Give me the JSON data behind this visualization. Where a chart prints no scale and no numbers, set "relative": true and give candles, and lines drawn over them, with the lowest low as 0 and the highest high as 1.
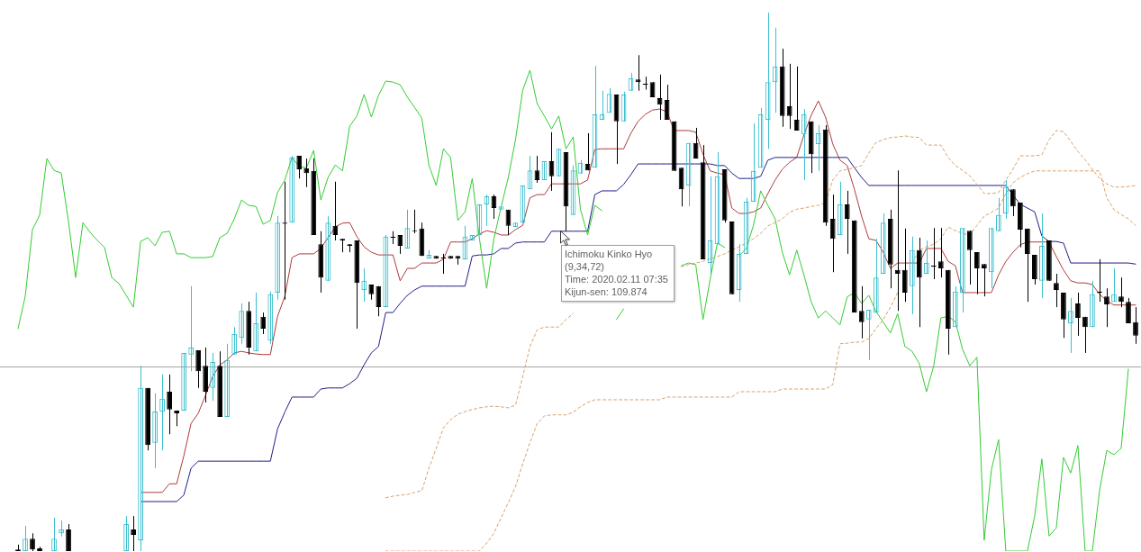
{
  "chart_data": {
    "type": "candlestick",
    "relative": true,
    "legend": false,
    "tick_labels": false,
    "marker": "none",
    "categories": [
      null,
      null,
      null,
      null,
      null,
      null,
      null,
      null,
      null,
      null,
      null,
      null,
      null,
      null,
      null,
      null,
      null,
      null,
      null,
      null,
      null,
      null,
      null,
      null,
      null,
      null,
      null,
      null,
      null,
      null,
      null,
      null,
      null,
      null,
      null,
      null,
      null,
      null,
      null,
      null,
      null,
      null,
      null,
      null,
      null,
      null,
      null,
      null,
      null,
      null,
      null,
      null,
      null,
      null,
      null,
      null,
      null,
      null,
      null,
      null,
      null,
      null,
      null,
      null,
      null,
      null,
      null,
      null,
      null,
      null,
      null,
      null,
      null,
      null,
      null,
      null,
      null,
      null,
      null,
      null,
      null,
      null,
      null,
      null,
      null,
      null,
      null,
      null,
      null,
      null,
      null,
      null,
      null,
      null,
      null,
      null,
      null,
      null,
      null,
      null,
      null,
      null,
      null,
      null,
      null,
      null,
      null,
      null,
      null,
      null,
      null,
      null,
      null,
      null,
      null,
      null,
      null,
      null,
      null,
      null,
      null,
      null,
      null,
      null,
      null,
      null,
      null,
      null,
      null,
      null,
      null,
      null,
      null,
      null,
      null,
      null,
      null,
      null,
      null,
      null,
      null,
      null,
      null,
      null,
      null,
      null,
      null,
      null,
      null,
      null,
      null,
      null,
      null,
      null,
      null,
      null
    ],
    "ohlc": [
      [
        0.003,
        0.012,
        0,
        0
      ],
      [
        0,
        0.047,
        0,
        0.023
      ],
      [
        0.023,
        0.033,
        0,
        0.003
      ],
      [
        0.005,
        0.008,
        0,
        0
      ],
      null,
      [
        0,
        0.062,
        0,
        0.023
      ],
      [
        0.033,
        0.057,
        0.027,
        0.04
      ],
      [
        0.04,
        0.05,
        0,
        0
      ],
      null,
      null,
      null,
      null,
      null,
      null,
      null,
      [
        0,
        0.065,
        0,
        0.05
      ],
      [
        0.04,
        0.065,
        0,
        0.03
      ],
      [
        0.02,
        0.344,
        0,
        0.303
      ],
      [
        0.303,
        0.303,
        0.187,
        0.197
      ],
      [
        0.201,
        0.293,
        0.154,
        0.259
      ],
      [
        0.259,
        0.328,
        0.187,
        0.283
      ],
      [
        0.296,
        0.328,
        0.217,
        0.263
      ],
      [
        0.261,
        0.261,
        0.232,
        0.256
      ],
      [
        0.261,
        0.368,
        0.261,
        0.368
      ],
      [
        0.365,
        0.492,
        0.334,
        0.378
      ],
      [
        0.373,
        0.373,
        0.303,
        0.334
      ],
      [
        0.344,
        0.378,
        0.276,
        0.296
      ],
      [
        0.303,
        0.368,
        0.279,
        0.351
      ],
      [
        0.344,
        0.371,
        0.249,
        0.249
      ],
      [
        0.249,
        0.385,
        0.249,
        0.355
      ],
      [
        0.365,
        0.416,
        0.365,
        0.403
      ],
      [
        0.396,
        0.46,
        0.385,
        0.446
      ],
      [
        0.446,
        0.463,
        0.365,
        0.378
      ],
      [
        0.371,
        0.48,
        0.371,
        0.423
      ],
      [
        0.435,
        0.443,
        0.403,
        0.413
      ],
      [
        0.391,
        0.482,
        0.385,
        0.477
      ],
      [
        0.48,
        0.622,
        0.467,
        0.61
      ],
      [
        0.61,
        0.686,
        0.467,
        0.608
      ],
      [
        0.61,
        0.734,
        0.61,
        0.731
      ],
      [
        0.734,
        0.734,
        0.692,
        0.709
      ],
      [
        0.711,
        0.729,
        0.676,
        0.702
      ],
      [
        0.706,
        0.729,
        0.587,
        0.587
      ],
      [
        0.57,
        0.594,
        0.48,
        0.508
      ],
      [
        0.502,
        0.622,
        0.502,
        0.61
      ],
      [
        0.604,
        0.686,
        0.577,
        0.587
      ],
      [
        0.58,
        0.58,
        0.555,
        0.577
      ],
      [
        0.57,
        0.57,
        0.555,
        0.567
      ],
      [
        0.577,
        0.577,
        0.413,
        0.498
      ],
      [
        0.485,
        0.525,
        0.463,
        0.502
      ],
      [
        0.495,
        0.495,
        0.467,
        0.477
      ],
      [
        0.492,
        0.492,
        0.436,
        0.453
      ],
      [
        0.453,
        0.587,
        0.453,
        0.584
      ],
      [
        0.584,
        0.594,
        0.57,
        0.582
      ],
      [
        0.587,
        0.587,
        0.552,
        0.567
      ],
      [
        0.562,
        0.634,
        0.562,
        0.6
      ],
      [
        0.594,
        0.634,
        0.59,
        0.594
      ],
      [
        0.599,
        0.61,
        0.548,
        0.548
      ],
      [
        0.543,
        0.559,
        0.543,
        0.55
      ],
      [
        0.548,
        0.548,
        0.543,
        0.543
      ],
      [
        0.545,
        0.552,
        0.515,
        0.543
      ],
      [
        0.548,
        0.548,
        0.543,
        0.543
      ],
      [
        0.548,
        0.548,
        0.532,
        0.543
      ],
      [
        0.542,
        0.604,
        0.542,
        0.584
      ],
      [
        0.577,
        0.587,
        0.577,
        0.587
      ],
      [
        0.587,
        0.644,
        0.587,
        0.644
      ],
      [
        0.644,
        0.662,
        0.604,
        0.659
      ],
      [
        0.659,
        0.662,
        0.617,
        0.637
      ],
      [
        0.634,
        0.64,
        0.634,
        0.64
      ],
      [
        0.634,
        0.634,
        0.587,
        0.604
      ],
      [
        0.602,
        0.61,
        0.602,
        0.61
      ],
      [
        0.61,
        0.679,
        0.61,
        0.679
      ],
      [
        0.672,
        0.734,
        0.672,
        0.707
      ],
      [
        0.707,
        0.734,
        0.684,
        0.689
      ],
      [
        0.689,
        0.724,
        0.689,
        0.724
      ],
      [
        0.724,
        0.778,
        0.669,
        0.696
      ],
      [
        0.696,
        0.747,
        0.696,
        0.747
      ],
      [
        0.741,
        0.741,
        0.594,
        0.64
      ],
      [
        0.624,
        0.716,
        0.624,
        0.707
      ],
      [
        0.701,
        0.726,
        0.701,
        0.721
      ],
      [
        0.719,
        0.776,
        0.707,
        0.707
      ],
      [
        0.712,
        0.901,
        0.712,
        0.811
      ],
      [
        0.801,
        0.855,
        0.801,
        0.811
      ],
      [
        0.814,
        0.86,
        0.814,
        0.849
      ],
      [
        0.848,
        0.848,
        0.719,
        0.798
      ],
      [
        0.798,
        0.853,
        0.798,
        0.848
      ],
      [
        0.855,
        0.888,
        0.855,
        0.878
      ],
      [
        0.876,
        0.921,
        0.855,
        0.871
      ],
      [
        0.868,
        0.881,
        0.857,
        0.866
      ],
      [
        0.871,
        0.871,
        0.843,
        0.843
      ],
      [
        0.841,
        0.885,
        0.801,
        0.829
      ],
      [
        0.838,
        0.866,
        0.801,
        0.801
      ],
      [
        0.798,
        0.798,
        0.706,
        0.706
      ],
      [
        0.712,
        0.712,
        0.64,
        0.672
      ],
      [
        0.679,
        0.758,
        0.64,
        0.758
      ],
      [
        0.758,
        0.786,
        0.729,
        0.729
      ],
      [
        0.722,
        0.754,
        0.542,
        0.542
      ],
      [
        0.535,
        0.696,
        0.515,
        0.577
      ],
      [
        0.57,
        0.741,
        0.57,
        0.696
      ],
      [
        0.709,
        0.709,
        0.61,
        0.614
      ],
      [
        0.612,
        0.612,
        0.477,
        0.477
      ],
      [
        0.485,
        0.57,
        0.463,
        0.552
      ],
      [
        0.552,
        0.656,
        0.552,
        0.649
      ],
      [
        0.649,
        0.794,
        0.649,
        0.706
      ],
      [
        0.712,
        0.823,
        0.712,
        0.811
      ],
      [
        0.801,
        1,
        0.747,
        0.871
      ],
      [
        0.871,
        0.972,
        0.814,
        0.9
      ],
      [
        0.9,
        0.933,
        0.788,
        0.808
      ],
      [
        0.826,
        0.905,
        0.784,
        0.808
      ],
      [
        0.801,
        0.9,
        0.781,
        0.781
      ],
      [
        0.774,
        0.821,
        0.689,
        0.811
      ],
      [
        0.798,
        0.798,
        0.702,
        0.737
      ],
      [
        0.756,
        0.791,
        0.706,
        0.776
      ],
      [
        0.783,
        0.791,
        0.604,
        0.61
      ],
      [
        0.617,
        0.662,
        0.518,
        0.58
      ],
      [
        0.587,
        0.686,
        0.587,
        0.644
      ],
      [
        0.644,
        0.669,
        0.552,
        0.617
      ],
      [
        0.614,
        0.614,
        0.443,
        0.443
      ],
      [
        0.446,
        0.492,
        0.395,
        0.425
      ],
      [
        0.43,
        0.448,
        0.355,
        0.448
      ],
      [
        0.443,
        0.58,
        0.443,
        0.508
      ],
      [
        0.515,
        0.627,
        0.515,
        0.61
      ],
      [
        0.617,
        0.634,
        0.488,
        0.532
      ],
      [
        0.522,
        0.707,
        0.446,
        0.515
      ],
      [
        0.522,
        0.599,
        0.463,
        0.48
      ],
      [
        0.492,
        0.584,
        0.44,
        0.559
      ],
      [
        0.559,
        0.582,
        0.416,
        0.508
      ],
      [
        0.515,
        0.577,
        0.515,
        0.535
      ],
      [
        0.53,
        0.6,
        0.505,
        0.528
      ],
      [
        0.538,
        0.6,
        0.508,
        0.525
      ],
      [
        0.522,
        0.522,
        0.365,
        0.413
      ],
      [
        0.416,
        0.492,
        0.416,
        0.482
      ],
      [
        0.48,
        0.6,
        0.443,
        0.6
      ],
      [
        0.595,
        0.595,
        0.495,
        0.559
      ],
      [
        0.555,
        0.555,
        0.477,
        0.525
      ],
      [
        0.533,
        0.533,
        0.473,
        0.525
      ],
      [
        0.518,
        0.6,
        0.488,
        0.6
      ],
      [
        0.594,
        0.656,
        0.594,
        0.624
      ],
      [
        0.627,
        0.689,
        0.617,
        0.676
      ],
      [
        0.672,
        0.672,
        0.622,
        0.64
      ],
      [
        0.647,
        0.647,
        0.564,
        0.597
      ],
      [
        0.599,
        0.599,
        0.463,
        0.552
      ],
      [
        0.55,
        0.55,
        0.495,
        0.505
      ],
      [
        0.502,
        0.627,
        0.47,
        0.567
      ],
      [
        0.577,
        0.577,
        0.502,
        0.502
      ],
      [
        0.498,
        0.515,
        0.453,
        0.485
      ],
      [
        0.48,
        0.48,
        0.396,
        0.43
      ],
      [
        0.423,
        0.47,
        0.368,
        0.446
      ],
      [
        0.46,
        0.48,
        0.4,
        0.433
      ],
      [
        0.435,
        0.435,
        0.368,
        0.416
      ],
      [
        0.416,
        0.502,
        0.416,
        0.477
      ],
      [
        0.482,
        0.542,
        0.463,
        0.48
      ],
      [
        0.473,
        0.488,
        0.416,
        0.458
      ],
      [
        0.463,
        0.525,
        0.463,
        0.477
      ],
      [
        0.473,
        0.508,
        0.453,
        0.463
      ],
      [
        0.463,
        0.47,
        0.423,
        0.423
      ],
      [
        0.425,
        0.453,
        0.385,
        0.4
      ]
    ],
    "colors": [
      "#000000",
      "#3cbfcf",
      "#000000",
      "#000000",
      null,
      "#3cbfcf",
      "#3cbfcf",
      "#000000",
      null,
      null,
      null,
      null,
      null,
      null,
      null,
      "#3cbfcf",
      "#000000",
      "#3cbfcf",
      "#000000",
      "#3cbfcf",
      "#3cbfcf",
      "#000000",
      "#000000",
      "#3cbfcf",
      "#3cbfcf",
      "#000000",
      "#000000",
      "#3cbfcf",
      "#000000",
      "#3cbfcf",
      "#3cbfcf",
      "#3cbfcf",
      "#000000",
      "#3cbfcf",
      "#000000",
      "#3cbfcf",
      "#3cbfcf",
      "#000000",
      "#3cbfcf",
      "#000000",
      "#000000",
      "#000000",
      "#000000",
      "#3cbfcf",
      "#000000",
      "#000000",
      "#000000",
      "#000000",
      "#3cbfcf",
      "#000000",
      "#000000",
      "#3cbfcf",
      "#000000",
      "#000000",
      "#3cbfcf",
      "#000000",
      "#000000",
      "#3cbfcf",
      "#000000",
      "#000000",
      "#000000",
      "#000000",
      "#3cbfcf",
      "#3cbfcf",
      "#3cbfcf",
      "#3cbfcf",
      "#000000",
      "#3cbfcf",
      "#000000",
      "#3cbfcf",
      "#3cbfcf",
      "#3cbfcf",
      "#000000",
      "#3cbfcf",
      "#000000",
      "#3cbfcf",
      "#000000",
      "#3cbfcf",
      "#3cbfcf",
      "#000000",
      "#3cbfcf",
      "#3cbfcf",
      "#3cbfcf",
      "#000000",
      "#3cbfcf",
      "#3cbfcf",
      "#000000",
      "#000000",
      "#000000",
      "#000000",
      "#000000",
      "#000000",
      "#000000",
      "#3cbfcf",
      "#000000",
      "#000000",
      "#3cbfcf",
      "#3cbfcf",
      "#000000",
      "#000000",
      "#3cbfcf",
      "#3cbfcf",
      "#3cbfcf",
      "#3cbfcf",
      "#3cbfcf",
      "#3cbfcf",
      "#000000",
      "#000000",
      "#000000",
      "#3cbfcf",
      "#000000",
      "#3cbfcf",
      "#000000",
      "#000000",
      "#3cbfcf",
      "#000000",
      "#000000",
      "#000000",
      "#3cbfcf",
      "#3cbfcf",
      "#3cbfcf",
      "#000000",
      "#000000",
      "#000000",
      "#3cbfcf",
      "#000000",
      "#3cbfcf",
      "#000000",
      "#000000",
      "#000000",
      "#3cbfcf",
      "#3cbfcf",
      "#000000",
      "#000000",
      "#000000",
      "#3cbfcf",
      "#3cbfcf",
      "#3cbfcf",
      "#000000",
      "#000000",
      "#000000",
      "#000000",
      "#3cbfcf",
      "#000000",
      "#000000",
      "#000000",
      "#3cbfcf",
      "#000000",
      "#000000",
      "#3cbfcf",
      "#000000",
      "#000000",
      "#3cbfcf",
      "#000000",
      "#000000",
      "#000000"
    ],
    "series": [
      {
        "type": "line",
        "color": "#d9a066",
        "line_style": "dashed",
        "values": [
          null,
          null,
          null,
          null,
          null,
          null,
          null,
          null,
          null,
          null,
          null,
          null,
          null,
          null,
          null,
          null,
          null,
          null,
          null,
          null,
          null,
          null,
          null,
          null,
          null,
          null,
          null,
          null,
          null,
          null,
          null,
          null,
          null,
          null,
          null,
          null,
          null,
          null,
          null,
          null,
          null,
          null,
          null,
          null,
          null,
          null,
          null,
          null,
          null,
          null,
          null,
          0.099,
          0.102,
          0.104,
          0.105,
          0.109,
          0.112,
          0.154,
          0.191,
          0.229,
          0.244,
          0.254,
          0.259,
          0.263,
          0.266,
          0.268,
          0.269,
          0.268,
          0.266,
          0.271,
          0.324,
          0.38,
          0.411,
          0.416,
          0.416,
          0.416,
          0.43,
          0.441,
          null,
          null,
          null,
          null,
          null,
          null,
          null,
          null,
          null,
          null,
          null,
          null,
          null,
          null,
          0.528,
          0.532,
          0.535,
          0.538,
          0.543,
          0.547,
          0.552,
          0.559,
          0.565,
          0.572,
          0.58,
          0.59,
          0.604,
          0.61,
          0.617,
          0.629,
          0.635,
          0.637,
          0.64,
          0.642,
          0.647,
          0.689,
          0.706,
          0.709,
          0.712,
          0.716,
          0.739,
          0.759,
          0.764,
          0.768,
          0.769,
          0.771,
          0.769,
          0.768,
          0.754,
          0.754,
          0.754,
          0.731,
          0.716,
          0.707,
          0.697,
          0.681,
          0.664,
          0.664,
          0.666,
          0.689,
          0.709,
          0.734,
          0.734,
          0.734,
          0.736,
          0.764,
          0.781,
          0.779,
          0.761,
          0.742,
          0.727,
          0.709,
          0.692,
          0.682,
          0.676,
          0.676,
          0.677,
          0.679
        ]
      },
      {
        "type": "line",
        "color": "#d9a066",
        "line_style": "dashed",
        "values": [
          null,
          null,
          null,
          null,
          null,
          null,
          null,
          null,
          null,
          null,
          null,
          null,
          null,
          null,
          null,
          null,
          null,
          null,
          null,
          null,
          null,
          null,
          null,
          null,
          null,
          null,
          null,
          null,
          null,
          null,
          null,
          null,
          null,
          null,
          null,
          null,
          null,
          null,
          null,
          null,
          null,
          null,
          null,
          null,
          null,
          null,
          null,
          null,
          null,
          null,
          null,
          0,
          0,
          0,
          0,
          0,
          0,
          0,
          0,
          0,
          0,
          0,
          0,
          0,
          0,
          0.015,
          0.033,
          0.062,
          0.09,
          0.12,
          0.162,
          0.201,
          0.237,
          0.251,
          0.253,
          0.253,
          0.253,
          0.258,
          0.268,
          0.276,
          0.281,
          0.281,
          0.281,
          0.281,
          0.281,
          0.281,
          0.281,
          0.281,
          0.281,
          0.281,
          0.286,
          0.286,
          0.286,
          0.286,
          0.286,
          0.286,
          0.286,
          0.286,
          0.286,
          0.286,
          0.296,
          0.296,
          0.296,
          0.296,
          0.296,
          0.296,
          0.301,
          0.301,
          0.301,
          0.301,
          0.301,
          0.301,
          0.301,
          0.309,
          0.385,
          0.386,
          0.388,
          0.388,
          0.395,
          0.413,
          0.43,
          0.453,
          0.48,
          null,
          0.535,
          0.559,
          0.565,
          0.57,
          0.58,
          0.602,
          0.595,
          0.59,
          0.587,
          0.605,
          0.622,
          0.629,
          0.637,
          0.664,
          0.684,
          0.694,
          0.701,
          0.706,
          0.706,
          0.706,
          0.706,
          0.706,
          0.706,
          0.706,
          0.706,
          0.706,
          0.706,
          0.656,
          0.634,
          0.625,
          0.617,
          0.605
        ]
      },
      {
        "type": "line",
        "color": "#33cc33",
        "values": [
          0.413,
          0.473,
          0.597,
          0.624,
          0.729,
          0.707,
          0.702,
          0.612,
          0.508,
          0.61,
          0.592,
          0.577,
          0.564,
          0.508,
          0.497,
          0.475,
          0.453,
          0.575,
          0.582,
          0.567,
          0.592,
          0.594,
          0.552,
          0.552,
          0.545,
          0.545,
          0.545,
          0.547,
          0.582,
          0.59,
          0.617,
          0.652,
          0.642,
          0.64,
          0.607,
          0.614,
          0.666,
          0.689,
          0.731,
          0.714,
          0.712,
          0.744,
          0.652,
          0.694,
          0.717,
          0.706,
          0.789,
          0.808,
          0.848,
          0.806,
          0.846,
          0.873,
          0.871,
          0.866,
          0.843,
          0.824,
          0.804,
          0.716,
          0.679,
          0.747,
          0.731,
          0.614,
          0.63,
          0.692,
          0.58,
          0.488,
          0.58,
          0.639,
          0.694,
          0.764,
          0.856,
          0.893,
          0.831,
          0.808,
          0.784,
          0.808,
          0.747,
          0.769,
          0.635,
          0.587,
          0.642,
          0.632,
          null,
          0.43,
          0.45,
          null,
          null,
          null,
          null,
          null,
          null,
          null,
          0.53,
          0.535,
          0.532,
          0.43,
          0.505,
          0.572,
          0.564,
          null,
          0.548,
          0.562,
          0.605,
          0.669,
          0.642,
          0.617,
          0.555,
          0.513,
          0.559,
          0.513,
          0.463,
          0.433,
          0.446,
          0.433,
          0.42,
          0.472,
          0.48,
          0.46,
          0.475,
          0.445,
          0.425,
          0.405,
          0.441,
          0.38,
          0.371,
          0.348,
          0.296,
          0.344,
          0.433,
          0.436,
          0.426,
          0.375,
          0.344,
          0.36,
          0.02,
          0.151,
          0.207,
          0,
          0,
          0,
          0,
          0.065,
          0.171,
          0.028,
          0.043,
          0.174,
          0.145,
          0.196,
          0,
          0,
          0.112,
          0.187,
          0.179,
          0.191,
          0.338,
          null
        ]
      },
      {
        "type": "line",
        "color": "#1f1f8a",
        "values": [
          null,
          null,
          null,
          null,
          null,
          null,
          null,
          null,
          null,
          null,
          null,
          null,
          null,
          null,
          null,
          null,
          null,
          0.092,
          0.092,
          0.092,
          0.092,
          0.092,
          0.092,
          0.104,
          0.154,
          0.167,
          0.167,
          0.167,
          0.167,
          0.167,
          0.167,
          0.167,
          0.167,
          0.167,
          0.167,
          0.167,
          0.227,
          0.258,
          0.286,
          0.286,
          0.286,
          0.286,
          0.301,
          0.303,
          0.303,
          0.303,
          0.311,
          0.321,
          0.346,
          0.368,
          0.38,
          0.443,
          0.443,
          0.46,
          0.475,
          0.485,
          0.492,
          0.492,
          0.492,
          0.492,
          0.492,
          0.492,
          0.492,
          0.548,
          0.55,
          0.55,
          0.552,
          0.562,
          0.562,
          0.572,
          0.574,
          0.574,
          0.574,
          0.574,
          0.594,
          0.594,
          0.594,
          0.594,
          0.594,
          0.594,
          0.662,
          0.669,
          0.669,
          0.669,
          0.681,
          0.699,
          0.719,
          0.719,
          0.719,
          0.719,
          0.719,
          0.719,
          0.719,
          0.719,
          0.719,
          0.719,
          0.719,
          0.716,
          0.716,
          0.702,
          0.692,
          0.692,
          0.692,
          0.696,
          0.726,
          0.731,
          0.731,
          0.731,
          0.731,
          0.731,
          0.731,
          0.731,
          0.731,
          0.731,
          0.731,
          0.731,
          0.712,
          0.694,
          0.679,
          0.679,
          0.679,
          0.679,
          0.679,
          0.679,
          0.679,
          0.679,
          0.679,
          0.679,
          0.679,
          0.679,
          0.679,
          0.679,
          0.679,
          0.679,
          0.679,
          0.679,
          0.679,
          0.679,
          0.661,
          0.644,
          0.637,
          0.63,
          0.585,
          0.575,
          0.575,
          0.572,
          0.535,
          0.535,
          0.535,
          0.535,
          0.535,
          0.535,
          0.535,
          0.535,
          0.535,
          0.533
        ]
      },
      {
        "type": "line",
        "color": "#b03a3a",
        "values": [
          null,
          null,
          null,
          null,
          null,
          null,
          null,
          null,
          null,
          null,
          null,
          null,
          null,
          null,
          null,
          null,
          null,
          0.109,
          0.109,
          0.109,
          0.109,
          0.125,
          0.125,
          0.177,
          0.237,
          0.256,
          0.289,
          0.324,
          0.346,
          0.355,
          0.368,
          0.371,
          0.368,
          0.366,
          0.365,
          0.365,
          0.436,
          0.473,
          0.545,
          0.552,
          0.552,
          0.552,
          0.562,
          0.582,
          0.602,
          0.609,
          0.61,
          0.584,
          0.565,
          0.555,
          0.55,
          0.55,
          0.55,
          0.502,
          0.525,
          0.525,
          0.535,
          0.535,
          0.535,
          0.542,
          0.574,
          0.574,
          0.574,
          0.58,
          0.589,
          0.595,
          0.592,
          0.587,
          0.587,
          0.597,
          0.605,
          0.656,
          0.662,
          0.662,
          0.682,
          0.682,
          0.682,
          0.682,
          0.682,
          0.689,
          0.746,
          0.747,
          0.747,
          0.747,
          0.747,
          0.776,
          0.798,
          0.811,
          0.819,
          0.821,
          0.816,
          0.781,
          0.781,
          0.781,
          0.778,
          0.737,
          0.706,
          0.702,
          0.699,
          0.637,
          0.627,
          0.627,
          0.63,
          0.637,
          0.664,
          0.689,
          0.709,
          0.722,
          0.731,
          0.773,
          0.809,
          0.836,
          0.806,
          0.756,
          0.726,
          0.716,
          0.672,
          0.622,
          0.58,
          0.577,
          0.555,
          0.525,
          0.535,
          0.535,
          0.535,
          0.535,
          0.562,
          0.562,
          0.562,
          0.538,
          0.53,
          0.48,
          0.48,
          0.48,
          0.48,
          0.48,
          0.513,
          0.538,
          0.555,
          0.569,
          0.574,
          0.574,
          0.574,
          0.574,
          0.547,
          0.522,
          0.502,
          0.498,
          0.498,
          0.495,
          0.477,
          0.465,
          0.457,
          0.457,
          0.457,
          0.457
        ]
      }
    ],
    "ref_lines": [
      {
        "axis": "y",
        "value": 0.343,
        "color": "#a6a6a6"
      }
    ],
    "annotations": [
      "Ichimoku Kinko Hyo\n(9,34,72)\nTime: 2020.02.11 07:35\nKijun-sen: 109.874"
    ]
  }
}
